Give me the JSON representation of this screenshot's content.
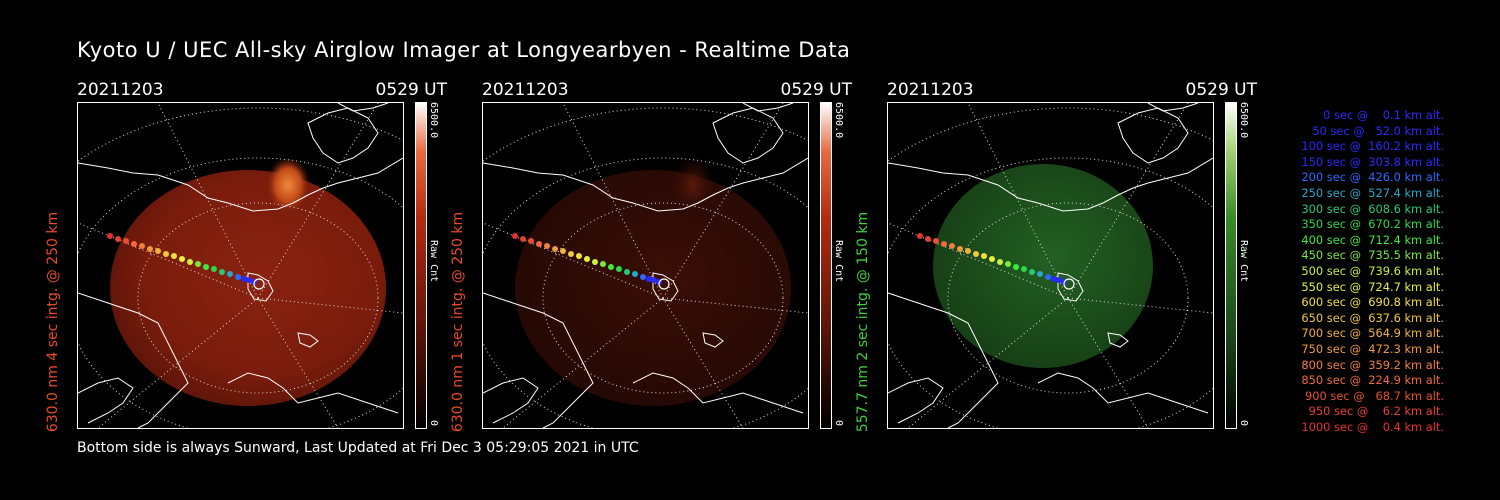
{
  "title": "Kyoto U / UEC All-sky Airglow Imager at Longyearbyen - Realtime Data",
  "footer": "Bottom side is always Sunward, Last Updated at Fri Dec  3 05:29:05 2021 in UTC",
  "panels": [
    {
      "date": "20211203",
      "time": "0529 UT",
      "ylabel": "630.0 nm 4 sec intg. @ 250 km",
      "label_color": "#e84a2a",
      "cbar_max": "6500.0",
      "cbar_min": "0",
      "cbar_label": "Raw Cnt",
      "channel_color": "#b52a10",
      "brightness": "bright"
    },
    {
      "date": "20211203",
      "time": "0529 UT",
      "ylabel": "630.0 nm 1 sec intg. @ 250 km",
      "label_color": "#e84a2a",
      "cbar_max": "6500.0",
      "cbar_min": "0",
      "cbar_label": "Raw Cnt",
      "channel_color": "#3a1008",
      "brightness": "dim"
    },
    {
      "date": "20211203",
      "time": "0529 UT",
      "ylabel": "557.7 nm 2 sec intg. @ 150 km",
      "label_color": "#3ecf3e",
      "cbar_max": "6500.0",
      "cbar_min": "0",
      "cbar_label": "Raw Cnt",
      "channel_color": "#1c4a1a",
      "brightness": "green"
    }
  ],
  "legend": [
    {
      "text": "   0 sec @    0.1 km alt.",
      "color": "#2a2aff"
    },
    {
      "text": "  50 sec @   52.0 km alt.",
      "color": "#2a2aff"
    },
    {
      "text": " 100 sec @  160.2 km alt.",
      "color": "#2a2aff"
    },
    {
      "text": " 150 sec @  303.8 km alt.",
      "color": "#2a2aff"
    },
    {
      "text": " 200 sec @  426.0 km alt.",
      "color": "#2a6aff"
    },
    {
      "text": " 250 sec @  527.4 km alt.",
      "color": "#2aa6c8"
    },
    {
      "text": " 300 sec @  608.6 km alt.",
      "color": "#2ac87a"
    },
    {
      "text": " 350 sec @  670.2 km alt.",
      "color": "#2ad848"
    },
    {
      "text": " 400 sec @  712.4 km alt.",
      "color": "#3ee83e"
    },
    {
      "text": " 450 sec @  735.5 km alt.",
      "color": "#7ae83e"
    },
    {
      "text": " 500 sec @  739.6 km alt.",
      "color": "#c8f03e"
    },
    {
      "text": " 550 sec @  724.7 km alt.",
      "color": "#e8f03e"
    },
    {
      "text": " 600 sec @  690.8 km alt.",
      "color": "#f0e03e"
    },
    {
      "text": " 650 sec @  637.6 km alt.",
      "color": "#f0c83e"
    },
    {
      "text": " 700 sec @  564.9 km alt.",
      "color": "#f0b03e"
    },
    {
      "text": " 750 sec @  472.3 km alt.",
      "color": "#f09a3e"
    },
    {
      "text": " 800 sec @  359.2 km alt.",
      "color": "#f0803e"
    },
    {
      "text": " 850 sec @  224.9 km alt.",
      "color": "#f06a3e"
    },
    {
      "text": " 900 sec @   68.7 km alt.",
      "color": "#e85030"
    },
    {
      "text": " 950 sec @    6.2 km alt.",
      "color": "#e84030"
    },
    {
      "text": "1000 sec @    0.4 km alt.",
      "color": "#e83030"
    }
  ]
}
